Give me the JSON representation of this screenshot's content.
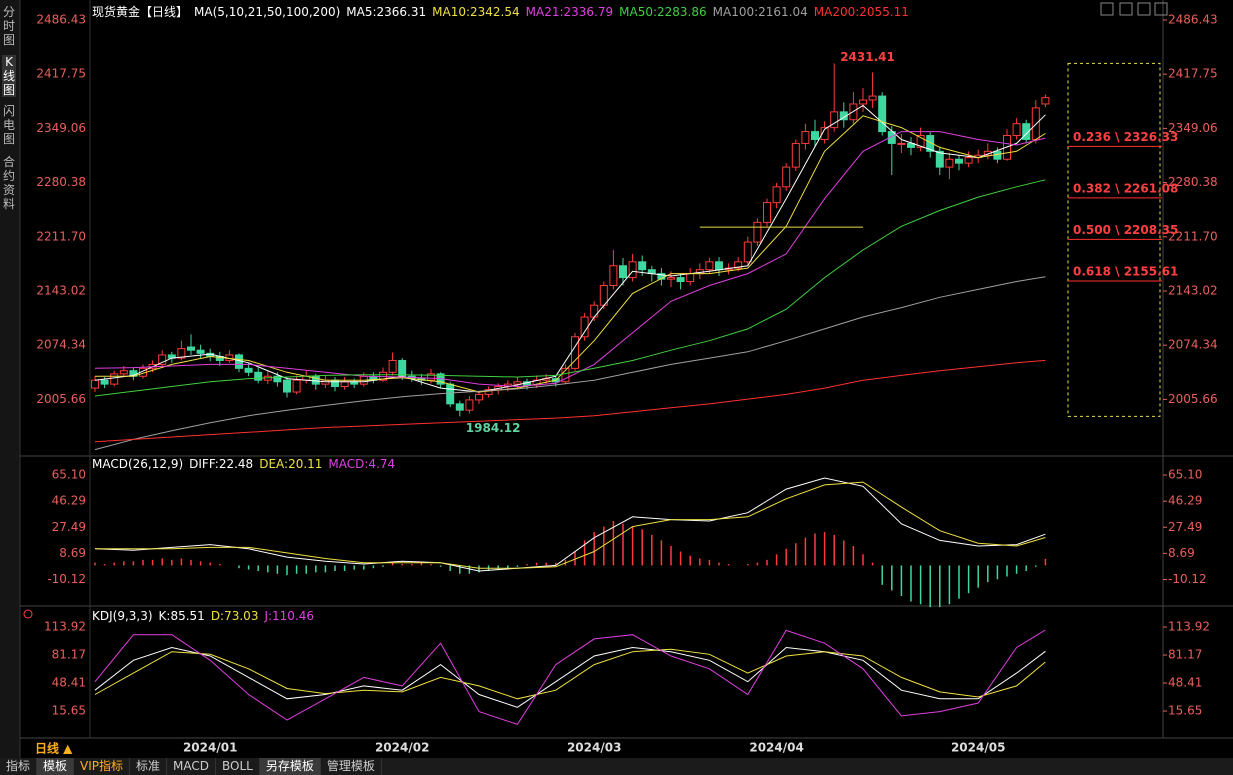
{
  "header": {
    "title": "现货黄金【日线】",
    "ma_label": "MA(5,10,21,50,100,200)",
    "period": "日线 ▲",
    "tabs": [
      "分时图",
      "K线图",
      "闪电图",
      "合约资料"
    ],
    "toolbar": [
      "指标",
      "模板",
      "VIP指标",
      "标准",
      "MACD",
      "BOLL",
      "另存模板",
      "管理模板"
    ]
  },
  "chart_data": [
    {
      "type": "candlestick",
      "ylim": [
        1935.2,
        2505.4
      ],
      "yticks": [
        2486.43,
        2417.75,
        2349.06,
        2280.38,
        {
          "value": 2211.7,
          "label": "2211.70"
        },
        2143.02,
        2074.34,
        2005.66
      ],
      "x_labels": [
        {
          "index": 12,
          "label": "2024/01"
        },
        {
          "index": 32,
          "label": "2024/02"
        },
        {
          "index": 52,
          "label": "2024/03"
        },
        {
          "index": 71,
          "label": "2024/04"
        },
        {
          "index": 92,
          "label": "2024/05"
        }
      ],
      "up_color": "#ff3b3b",
      "down_color": "#3fd7a0",
      "ohlc": [
        [
          2020,
          2035,
          2015,
          2030
        ],
        [
          2030,
          2034,
          2020,
          2025
        ],
        [
          2025,
          2042,
          2022,
          2038
        ],
        [
          2038,
          2048,
          2034,
          2042
        ],
        [
          2042,
          2046,
          2030,
          2035
        ],
        [
          2035,
          2050,
          2032,
          2045
        ],
        [
          2045,
          2055,
          2040,
          2050
        ],
        [
          2050,
          2068,
          2046,
          2062
        ],
        [
          2062,
          2066,
          2052,
          2058
        ],
        [
          2058,
          2080,
          2055,
          2070
        ],
        [
          2072,
          2088,
          2062,
          2068
        ],
        [
          2068,
          2075,
          2058,
          2064
        ],
        [
          2064,
          2070,
          2054,
          2060
        ],
        [
          2060,
          2066,
          2048,
          2055
        ],
        [
          2055,
          2068,
          2052,
          2062
        ],
        [
          2062,
          2064,
          2040,
          2045
        ],
        [
          2045,
          2052,
          2035,
          2040
        ],
        [
          2040,
          2046,
          2026,
          2030
        ],
        [
          2030,
          2042,
          2025,
          2035
        ],
        [
          2035,
          2040,
          2022,
          2028
        ],
        [
          2030,
          2034,
          2008,
          2015
        ],
        [
          2015,
          2036,
          2012,
          2030
        ],
        [
          2030,
          2042,
          2026,
          2035
        ],
        [
          2035,
          2038,
          2018,
          2025
        ],
        [
          2025,
          2036,
          2020,
          2030
        ],
        [
          2030,
          2034,
          2016,
          2022
        ],
        [
          2022,
          2034,
          2018,
          2028
        ],
        [
          2028,
          2032,
          2020,
          2025
        ],
        [
          2025,
          2040,
          2022,
          2035
        ],
        [
          2035,
          2040,
          2026,
          2030
        ],
        [
          2030,
          2046,
          2028,
          2040
        ],
        [
          2040,
          2065,
          2036,
          2055
        ],
        [
          2055,
          2058,
          2030,
          2035
        ],
        [
          2035,
          2042,
          2028,
          2032
        ],
        [
          2032,
          2038,
          2024,
          2030
        ],
        [
          2030,
          2044,
          2026,
          2038
        ],
        [
          2038,
          2040,
          2020,
          2025
        ],
        [
          2025,
          2028,
          1996,
          2000
        ],
        [
          2000,
          2004,
          1984.12,
          1992
        ],
        [
          1992,
          2010,
          1988,
          2005
        ],
        [
          2005,
          2016,
          2000,
          2012
        ],
        [
          2012,
          2022,
          2008,
          2018
        ],
        [
          2018,
          2026,
          2012,
          2022
        ],
        [
          2022,
          2030,
          2016,
          2025
        ],
        [
          2025,
          2034,
          2020,
          2028
        ],
        [
          2028,
          2032,
          2018,
          2024
        ],
        [
          2024,
          2036,
          2020,
          2030
        ],
        [
          2030,
          2038,
          2026,
          2032
        ],
        [
          2032,
          2036,
          2022,
          2028
        ],
        [
          2028,
          2050,
          2025,
          2045
        ],
        [
          2045,
          2090,
          2042,
          2085
        ],
        [
          2085,
          2115,
          2080,
          2110
        ],
        [
          2110,
          2130,
          2105,
          2125
        ],
        [
          2125,
          2155,
          2120,
          2150
        ],
        [
          2150,
          2195,
          2145,
          2175
        ],
        [
          2175,
          2185,
          2150,
          2160
        ],
        [
          2160,
          2190,
          2155,
          2180
        ],
        [
          2180,
          2188,
          2162,
          2170
        ],
        [
          2170,
          2175,
          2155,
          2165
        ],
        [
          2165,
          2172,
          2150,
          2158
        ],
        [
          2158,
          2168,
          2148,
          2160
        ],
        [
          2160,
          2165,
          2145,
          2155
        ],
        [
          2155,
          2172,
          2150,
          2165
        ],
        [
          2165,
          2178,
          2158,
          2170
        ],
        [
          2170,
          2185,
          2165,
          2180
        ],
        [
          2180,
          2186,
          2162,
          2170
        ],
        [
          2170,
          2178,
          2164,
          2172
        ],
        [
          2172,
          2186,
          2168,
          2180
        ],
        [
          2180,
          2212,
          2176,
          2205
        ],
        [
          2205,
          2235,
          2200,
          2230
        ],
        [
          2230,
          2260,
          2225,
          2255
        ],
        [
          2255,
          2280,
          2248,
          2275
        ],
        [
          2275,
          2305,
          2270,
          2300
        ],
        [
          2300,
          2335,
          2295,
          2330
        ],
        [
          2330,
          2355,
          2322,
          2345
        ],
        [
          2345,
          2360,
          2325,
          2335
        ],
        [
          2335,
          2358,
          2330,
          2350
        ],
        [
          2350,
          2431.41,
          2345,
          2370
        ],
        [
          2370,
          2382,
          2350,
          2360
        ],
        [
          2360,
          2395,
          2355,
          2380
        ],
        [
          2380,
          2400,
          2370,
          2385
        ],
        [
          2385,
          2420,
          2375,
          2390
        ],
        [
          2390,
          2395,
          2340,
          2345
        ],
        [
          2345,
          2352,
          2290,
          2330
        ],
        [
          2330,
          2342,
          2318,
          2330
        ],
        [
          2330,
          2338,
          2315,
          2325
        ],
        [
          2325,
          2350,
          2320,
          2340
        ],
        [
          2340,
          2345,
          2312,
          2320
        ],
        [
          2320,
          2326,
          2290,
          2300
        ],
        [
          2300,
          2318,
          2285,
          2310
        ],
        [
          2310,
          2315,
          2296,
          2305
        ],
        [
          2305,
          2320,
          2300,
          2312
        ],
        [
          2312,
          2322,
          2305,
          2315
        ],
        [
          2315,
          2330,
          2310,
          2320
        ],
        [
          2320,
          2325,
          2305,
          2310
        ],
        [
          2310,
          2348,
          2308,
          2340
        ],
        [
          2340,
          2362,
          2335,
          2355
        ],
        [
          2355,
          2360,
          2330,
          2335
        ],
        [
          2335,
          2385,
          2330,
          2375
        ],
        [
          2380,
          2392,
          2376,
          2388
        ]
      ],
      "line_x": [
        0,
        4,
        8,
        12,
        16,
        20,
        24,
        28,
        32,
        36,
        40,
        44,
        48,
        52,
        56,
        60,
        64,
        68,
        72,
        76,
        80,
        84,
        88,
        92,
        96,
        99
      ],
      "series": [
        {
          "name": "MA5:2366.31",
          "color": "#ffffff",
          "values": [
            2030,
            2036,
            2058,
            2063,
            2052,
            2032,
            2028,
            2028,
            2035,
            2020,
            2015,
            2024,
            2035,
            2110,
            2168,
            2162,
            2168,
            2175,
            2260,
            2348,
            2378,
            2335,
            2318,
            2312,
            2330,
            2366.31
          ]
        },
        {
          "name": "MA10:2342.54",
          "color": "#f0e040",
          "values": [
            2035,
            2035,
            2050,
            2060,
            2055,
            2040,
            2030,
            2030,
            2033,
            2028,
            2015,
            2020,
            2030,
            2080,
            2140,
            2165,
            2165,
            2172,
            2225,
            2320,
            2365,
            2350,
            2325,
            2312,
            2320,
            2342.54
          ]
        },
        {
          "name": "MA21:2336.79",
          "color": "#e040e0",
          "values": [
            2045,
            2046,
            2048,
            2050,
            2050,
            2045,
            2040,
            2035,
            2034,
            2032,
            2025,
            2022,
            2026,
            2050,
            2090,
            2130,
            2150,
            2165,
            2190,
            2260,
            2320,
            2345,
            2345,
            2335,
            2328,
            2336.79
          ]
        },
        {
          "name": "MA50:2283.86",
          "color": "#40d040",
          "values": [
            2010,
            2016,
            2022,
            2028,
            2032,
            2034,
            2036,
            2037,
            2037,
            2036,
            2035,
            2034,
            2036,
            2045,
            2055,
            2068,
            2080,
            2095,
            2120,
            2160,
            2195,
            2225,
            2245,
            2262,
            2275,
            2283.86
          ]
        },
        {
          "name": "MA100:2161.04",
          "color": "#a0a0a0",
          "values": [
            1942,
            1955,
            1966,
            1976,
            1985,
            1992,
            1998,
            2004,
            2009,
            2013,
            2016,
            2019,
            2024,
            2030,
            2040,
            2050,
            2058,
            2066,
            2080,
            2095,
            2110,
            2122,
            2135,
            2145,
            2155,
            2161.04
          ]
        },
        {
          "name": "MA200:2055.11",
          "color": "#ff3030",
          "values": [
            1952,
            1955,
            1958,
            1961,
            1964,
            1967,
            1970,
            1972,
            1974,
            1976,
            1978,
            1980,
            1982,
            1985,
            1990,
            1995,
            2000,
            2006,
            2012,
            2020,
            2030,
            2036,
            2042,
            2047,
            2052,
            2055.11
          ]
        }
      ],
      "annotations": [
        {
          "index": 77,
          "value": 2431.41,
          "color": "#ff4040"
        },
        {
          "index": 38,
          "value": 1984.12,
          "color": "#5fd3a0"
        }
      ],
      "hline": {
        "value": 2224,
        "from": 63,
        "to": 80,
        "color": "#e8e040"
      },
      "fib": [
        {
          "label": "0.236 \\ 2326.33",
          "value": 2326.33
        },
        {
          "label": "0.382 \\ 2261.08",
          "value": 2261.08
        },
        {
          "label": "0.500 \\ 2208.35",
          "value": 2208.35
        },
        {
          "label": "0.618 \\ 2155.61",
          "value": 2155.61
        }
      ]
    },
    {
      "type": "macd",
      "title": "MACD(26,12,9)",
      "ylim": [
        -28.5,
        74.5
      ],
      "yticks": [
        {
          "value": 65.1,
          "label": "65.10"
        },
        46.29,
        27.49,
        8.69,
        -10.12
      ],
      "series": [
        {
          "name": "DIFF:22.48",
          "color": "#ffffff",
          "values": [
            12,
            11,
            13,
            15,
            12,
            6,
            3,
            1,
            3,
            2,
            -4,
            -2,
            0,
            20,
            35,
            33,
            32,
            38,
            55,
            63,
            57,
            30,
            18,
            14,
            15,
            22.48
          ]
        },
        {
          "name": "DEA:20.11",
          "color": "#f0e040",
          "values": [
            12,
            12,
            12,
            13,
            13,
            9,
            5,
            2,
            2,
            2,
            -2,
            -2,
            -1,
            10,
            28,
            33,
            33,
            35,
            48,
            58,
            60,
            42,
            25,
            16,
            14,
            20.11
          ]
        }
      ],
      "histogram": {
        "name": "MACD:4.74",
        "color": "#e040e0",
        "up_color": "#ff3b3b",
        "down_color": "#3fd7a0",
        "values": [
          2,
          1,
          2,
          3,
          3,
          4,
          4,
          5,
          4,
          5,
          4,
          3,
          2,
          1,
          0,
          -2,
          -3,
          -4,
          -5,
          -6,
          -7,
          -6,
          -6,
          -5,
          -5,
          -4,
          -4,
          -3,
          -3,
          -2,
          -1,
          2,
          1,
          1,
          2,
          1,
          -1,
          -4,
          -6,
          -6,
          -5,
          -4,
          -3,
          -2,
          -1,
          1,
          2,
          2,
          2,
          4,
          10,
          18,
          24,
          28,
          32,
          30,
          28,
          26,
          22,
          18,
          14,
          10,
          7,
          5,
          4,
          2,
          1,
          0,
          1,
          2,
          4,
          8,
          12,
          16,
          20,
          23,
          24,
          22,
          18,
          14,
          8,
          2,
          -14,
          -18,
          -22,
          -26,
          -28,
          -30,
          -30,
          -28,
          -24,
          -20,
          -16,
          -12,
          -10,
          -8,
          -6,
          -4,
          -1,
          4.74
        ]
      }
    },
    {
      "type": "kdj",
      "title": "KDJ(9,3,3)",
      "ylim": [
        -12.4,
        131.5
      ],
      "yticks": [
        113.92,
        81.17,
        48.41,
        15.65
      ],
      "series": [
        {
          "name": "K:85.51",
          "color": "#ffffff",
          "values": [
            40,
            75,
            90,
            80,
            55,
            30,
            35,
            45,
            40,
            70,
            35,
            20,
            50,
            80,
            90,
            85,
            75,
            50,
            90,
            85,
            75,
            40,
            30,
            30,
            60,
            85.51
          ]
        },
        {
          "name": "D:73.03",
          "color": "#f0e040",
          "values": [
            35,
            60,
            85,
            82,
            65,
            42,
            36,
            40,
            38,
            55,
            45,
            30,
            40,
            70,
            85,
            88,
            82,
            60,
            80,
            85,
            80,
            55,
            38,
            32,
            45,
            73.03
          ]
        },
        {
          "name": "J:110.46",
          "color": "#e040e0",
          "values": [
            50,
            105,
            105,
            75,
            35,
            5,
            30,
            55,
            45,
            95,
            15,
            0,
            70,
            100,
            105,
            80,
            65,
            35,
            110,
            95,
            65,
            10,
            15,
            25,
            90,
            110.46
          ]
        }
      ]
    }
  ]
}
